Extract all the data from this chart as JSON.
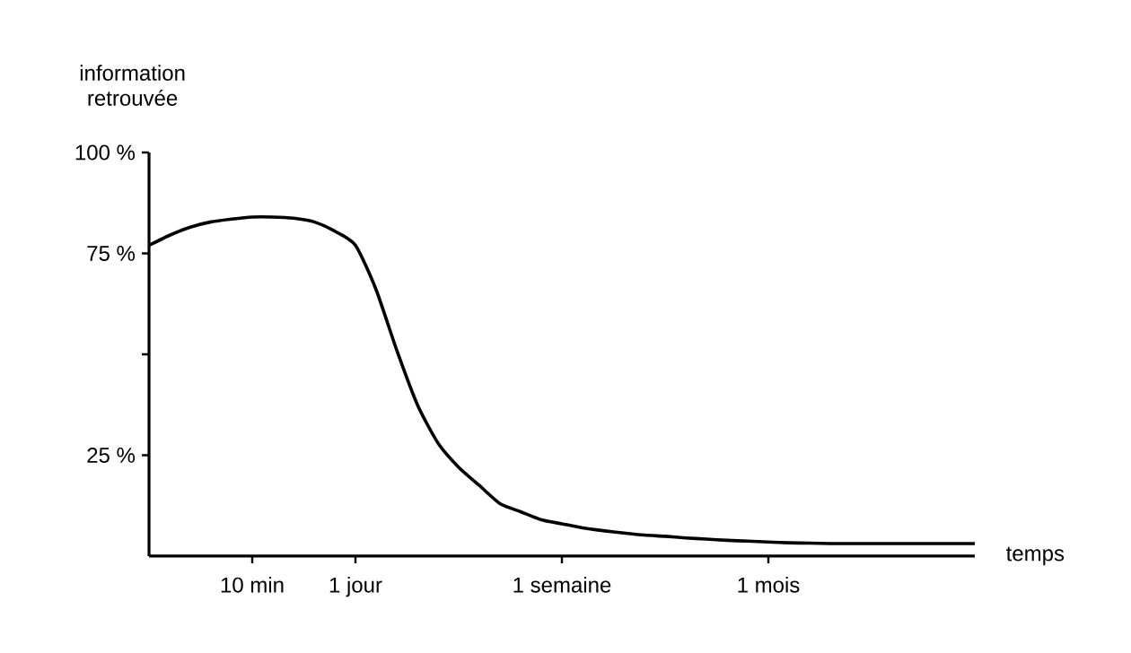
{
  "chart_data": {
    "type": "line",
    "xlabel": "temps",
    "ylabel": "information retrouvée",
    "categories": [
      null,
      null,
      null,
      null,
      null,
      "10 min",
      null,
      null,
      null,
      null,
      "1 jour",
      null,
      null,
      null,
      null,
      null,
      null,
      null,
      null,
      null,
      "1 semaine",
      null,
      null,
      null,
      null,
      null,
      null,
      null,
      null,
      null,
      "1 mois",
      null,
      null,
      null,
      null,
      null,
      null,
      null,
      null,
      null,
      null
    ],
    "series": [
      {
        "color": "#000000",
        "values": [
          77,
          79.5,
          81.5,
          82.8,
          83.5,
          84,
          84,
          83.7,
          82.8,
          80.5,
          77,
          66,
          51,
          37.5,
          28,
          22,
          17.5,
          13,
          11,
          9,
          8,
          7,
          6.3,
          5.7,
          5.2,
          4.9,
          4.5,
          4.2,
          3.9,
          3.7,
          3.5,
          3.3,
          3.2,
          3.1,
          3.1,
          3.1,
          3.1,
          3.1,
          3.1,
          3.1,
          3.1
        ]
      }
    ],
    "ylim": [
      0,
      100
    ],
    "yticks": [
      {
        "value": 25,
        "label": "25 %"
      },
      {
        "value": 50,
        "label": null
      },
      {
        "value": 75,
        "label": "75 %"
      },
      {
        "value": 100,
        "label": "100 %"
      }
    ]
  }
}
